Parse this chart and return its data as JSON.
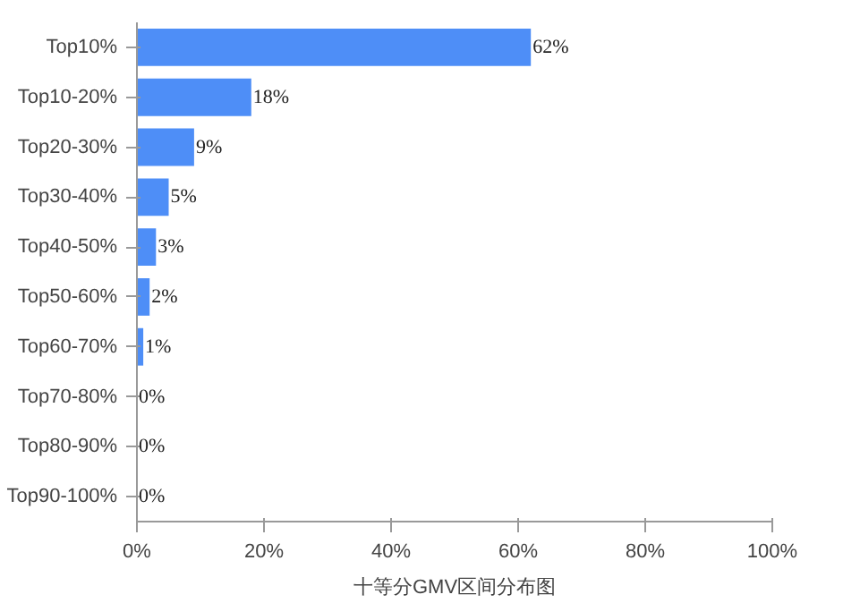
{
  "chart_data": {
    "type": "bar",
    "orientation": "horizontal",
    "xlabel": "十等分GMV区间分布图",
    "categories": [
      "Top10%",
      "Top10-20%",
      "Top20-30%",
      "Top30-40%",
      "Top40-50%",
      "Top50-60%",
      "Top60-70%",
      "Top70-80%",
      "Top80-90%",
      "Top90-100%"
    ],
    "values": [
      62,
      18,
      9,
      5,
      3,
      2,
      1,
      0,
      0,
      0
    ],
    "value_labels": [
      "62%",
      "18%",
      "9%",
      "5%",
      "3%",
      "2%",
      "1%",
      "0%",
      "0%",
      "0%"
    ],
    "color": "#4e8ef7",
    "xlim": [
      0,
      100
    ],
    "xticks": [
      {
        "value": 0,
        "label": "0%"
      },
      {
        "value": 20,
        "label": "20%"
      },
      {
        "value": 40,
        "label": "40%"
      },
      {
        "value": 60,
        "label": "60%"
      },
      {
        "value": 80,
        "label": "80%"
      },
      {
        "value": 100,
        "label": "100%"
      }
    ],
    "grid": false
  }
}
